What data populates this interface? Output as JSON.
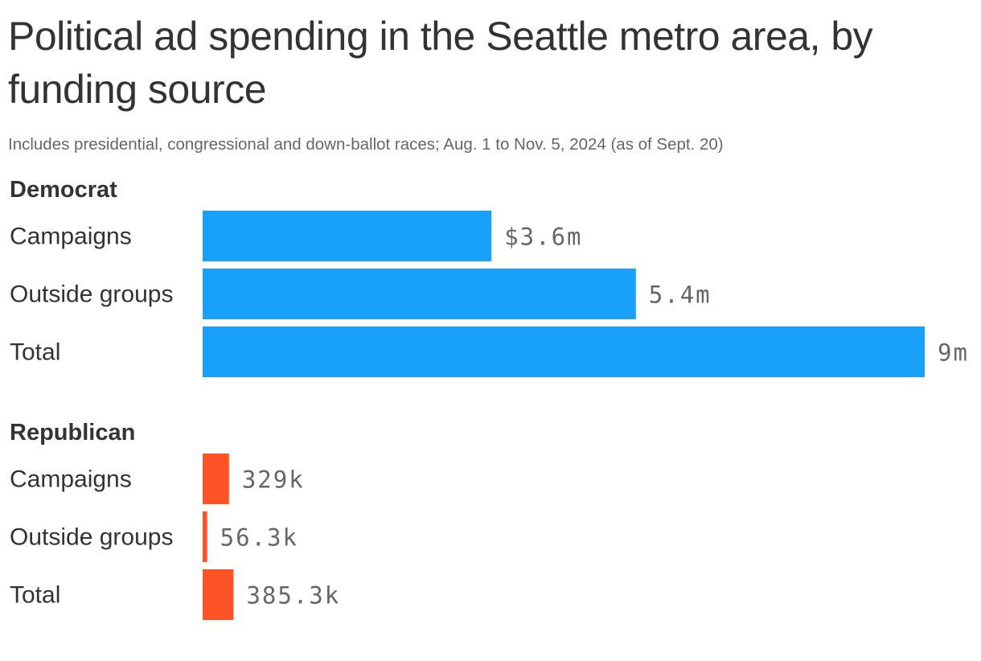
{
  "title": "Political ad spending in the Seattle metro area, by funding source",
  "subtitle": "Includes presidential, congressional and down-ballot races; Aug. 1 to Nov. 5, 2024 (as of Sept. 20)",
  "colors": {
    "Democrat": "#18a0fb",
    "Republican": "#ff5227"
  },
  "chart_data": {
    "type": "bar",
    "orientation": "horizontal",
    "title": "Political ad spending in the Seattle metro area, by funding source",
    "subtitle": "Includes presidential, congressional and down-ballot races; Aug. 1 to Nov. 5, 2024 (as of Sept. 20)",
    "unit": "USD",
    "xlim": [
      0,
      9000000
    ],
    "grid": false,
    "groups": [
      {
        "name": "Democrat",
        "color": "#18a0fb",
        "bars": [
          {
            "category": "Campaigns",
            "value": 3600000,
            "label": "$3.6m"
          },
          {
            "category": "Outside groups",
            "value": 5400000,
            "label": "5.4m"
          },
          {
            "category": "Total",
            "value": 9000000,
            "label": "9m"
          }
        ]
      },
      {
        "name": "Republican",
        "color": "#ff5227",
        "bars": [
          {
            "category": "Campaigns",
            "value": 329000,
            "label": "329k"
          },
          {
            "category": "Outside groups",
            "value": 56300,
            "label": "56.3k"
          },
          {
            "category": "Total",
            "value": 385300,
            "label": "385.3k"
          }
        ]
      }
    ]
  }
}
